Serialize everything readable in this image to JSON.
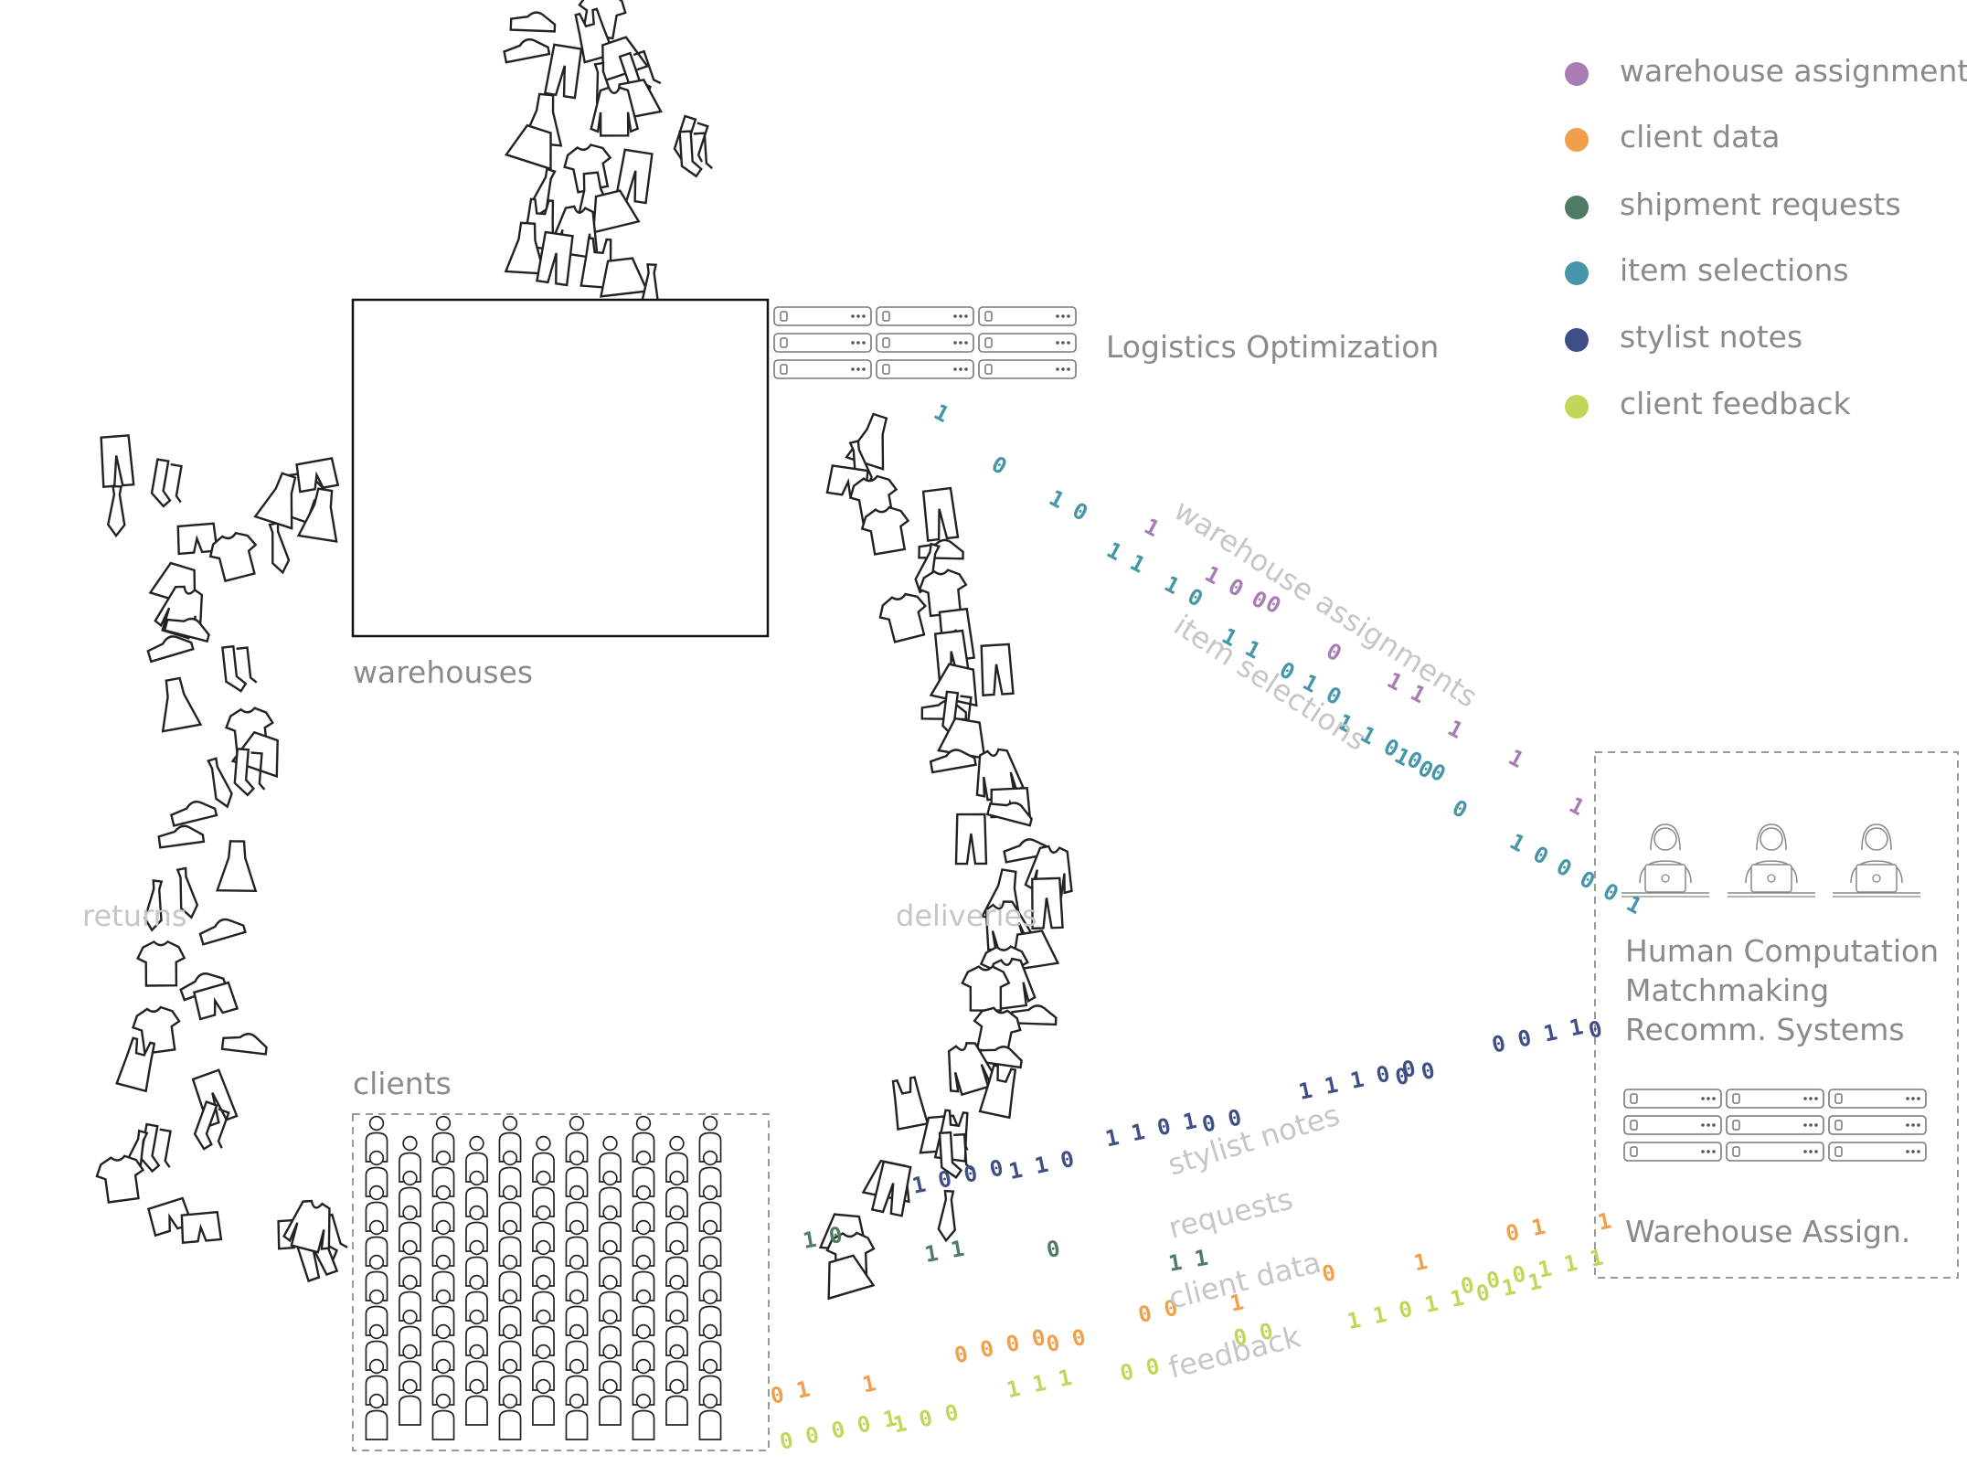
{
  "nodes": {
    "warehouses": "warehouses",
    "logistics": "Logistics Optimization",
    "clients": "clients",
    "returns": "returns",
    "deliveries": "deliveries",
    "human_line1": "Human Computation",
    "human_line2": "Matchmaking",
    "human_line3": "Recomm. Systems",
    "warehouse_assign": "Warehouse Assign."
  },
  "flows": {
    "warehouse_assignments": "warehouse assignments",
    "item_selections": "item selections",
    "stylist_notes": "stylist notes",
    "requests": "requests",
    "client_data": "client data",
    "feedback": "feedback"
  },
  "legend": [
    {
      "label": "warehouse assignment",
      "color": "#a97cb4"
    },
    {
      "label": "client data",
      "color": "#f0a04b"
    },
    {
      "label": "shipment requests",
      "color": "#4f7a64"
    },
    {
      "label": "item selections",
      "color": "#4596a8"
    },
    {
      "label": "stylist notes",
      "color": "#3f4f86"
    },
    {
      "label": "client feedback",
      "color": "#c3d65a"
    }
  ],
  "bit_streams": {
    "teal": [
      "1",
      "0",
      "1 0",
      "1 1",
      "1 0",
      "1 1",
      "0 1 0",
      "1 1  0 0 0",
      "1  0",
      "0",
      "1 0 0 0 0 1"
    ],
    "purple": [
      "1",
      "1 0 0",
      "0",
      "0",
      "1 1",
      "1",
      "1",
      "1"
    ],
    "navy": [
      "1 0 0 0",
      "1 1 0",
      "1 1   0   1",
      "0 0",
      "1 1 1 0 0",
      "0 0",
      "0   0 1 1",
      "0"
    ],
    "green": [
      "1 0",
      "1 1",
      "0",
      "1 1"
    ],
    "orange": [
      "0 1",
      "1",
      "0 0 0 0",
      "0 0",
      "0 0",
      "1",
      "0",
      "1",
      "0 1",
      "1"
    ],
    "lime": [
      "0 0 0 0 1",
      "1 0 0",
      "1 1 1",
      "0 0",
      "0 0",
      "1 1 0 1 1 0 1 1",
      "0 0 0 1  1  1"
    ]
  }
}
